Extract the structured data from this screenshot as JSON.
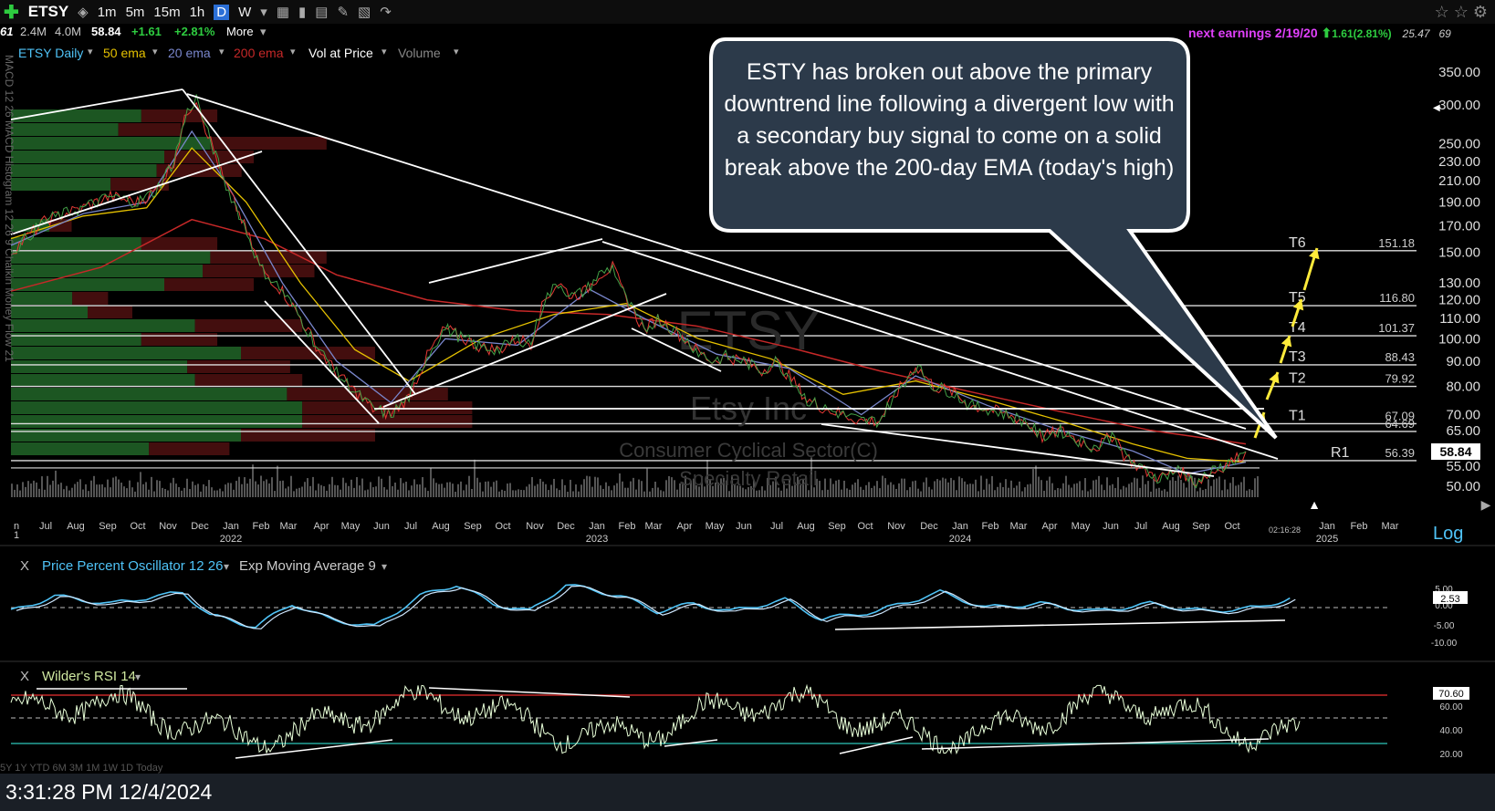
{
  "toolbar": {
    "symbol": "ETSY",
    "timeframes": [
      "1m",
      "5m",
      "15m",
      "1h",
      "D",
      "W"
    ],
    "selected_timeframe": "D"
  },
  "quote": {
    "prefix": "61",
    "volume": "2.4M",
    "avg_volume": "4.0M",
    "last": "58.84",
    "change": "+1.61",
    "change_pct": "+2.81%",
    "more": "More"
  },
  "earnings": {
    "label": "next earnings 2/19/20",
    "change": "1.61(2.81%)",
    "extra1": "25.47",
    "extra2": "69"
  },
  "legend": {
    "items": [
      {
        "label": "ETSY Daily",
        "color": "#4fc3f7"
      },
      {
        "label": "50 ema",
        "color": "#e5c100"
      },
      {
        "label": "20 ema",
        "color": "#7986cb"
      },
      {
        "label": "200 ema",
        "color": "#c62828"
      },
      {
        "label": "Vol at Price",
        "color": "#ffffff"
      },
      {
        "label": "Volume",
        "color": "#888888"
      }
    ]
  },
  "watermark": {
    "symbol": "ETSY",
    "name": "Etsy Inc",
    "sector": "Consumer Cyclical Sector(C)",
    "industry": "Specialty Retail"
  },
  "callout": {
    "text": "ESTY has broken out above the primary downtrend line following a divergent low with a secondary buy signal to come on a solid break above the 200-day EMA (today's high)"
  },
  "left_side_label": "MACD 12 26 MACD Histogram 12 26 9 Chaikin Money Flow 21",
  "panels": {
    "ppo": {
      "title": "Price Percent Oscillator 12 26",
      "signal": "Exp Moving Average 9",
      "close_label": "X",
      "value": "2.53"
    },
    "rsi": {
      "title": "Wilder's RSI 14",
      "close_label": "X",
      "value": "70.60"
    }
  },
  "log_label": "Log",
  "time_badge": "02:16:28",
  "status": {
    "timestamp": "3:31:28 PM 12/4/2024"
  },
  "range_buttons": "5Y  1Y  YTD  6M  3M  1M  1W  1D  Today",
  "chart_data": {
    "type": "line",
    "scale": "log",
    "ylim": [
      45,
      380
    ],
    "yticks": [
      350,
      300,
      250,
      230,
      210,
      190,
      170,
      150,
      130,
      120,
      110,
      100,
      90,
      80,
      70,
      65,
      55,
      50
    ],
    "ytick_labels": [
      "350.00",
      "300.00",
      "250.00",
      "230.00",
      "210.00",
      "190.00",
      "170.00",
      "150.00",
      "130.00",
      "120.00",
      "110.00",
      "100.00",
      "90.00",
      "80.00",
      "70.00",
      "65.00",
      "55.00",
      "50.00"
    ],
    "last_price": 58.84,
    "last_price_label": "58.84",
    "x_months": [
      "n",
      "Jul",
      "Aug",
      "Sep",
      "Oct",
      "Nov",
      "Dec",
      "Jan",
      "Feb",
      "Mar",
      "Apr",
      "May",
      "Jun",
      "Jul",
      "Aug",
      "Sep",
      "Oct",
      "Nov",
      "Dec",
      "Jan",
      "Feb",
      "Mar",
      "Apr",
      "May",
      "Jun",
      "Jul",
      "Aug",
      "Sep",
      "Oct",
      "Nov",
      "Dec",
      "Jan",
      "Feb",
      "Mar",
      "Apr",
      "May",
      "Jun",
      "Jul",
      "Aug",
      "Sep",
      "Oct",
      "Jan",
      "Feb",
      "Mar"
    ],
    "x_years": [
      "2022",
      "2023",
      "2024",
      "2025"
    ],
    "targets": [
      {
        "name": "T6",
        "value": 151.18,
        "label": "151.18"
      },
      {
        "name": "T5",
        "value": 116.8,
        "label": "116.80"
      },
      {
        "name": "T4",
        "value": 101.37,
        "label": "101.37"
      },
      {
        "name": "T3",
        "value": 88.43,
        "label": "88.43"
      },
      {
        "name": "T2",
        "value": 79.92,
        "label": "79.92"
      },
      {
        "name": "T1",
        "value": 67.09,
        "label": "67.09"
      },
      {
        "name": "",
        "value": 64.69,
        "label": "64.69"
      },
      {
        "name": "R1",
        "value": 56.39,
        "label": "56.39"
      }
    ],
    "price_path": [
      [
        0,
        150
      ],
      [
        40,
        175
      ],
      [
        80,
        185
      ],
      [
        110,
        195
      ],
      [
        140,
        190
      ],
      [
        160,
        200
      ],
      [
        180,
        230
      ],
      [
        195,
        290
      ],
      [
        205,
        310
      ],
      [
        215,
        270
      ],
      [
        235,
        210
      ],
      [
        255,
        175
      ],
      [
        275,
        140
      ],
      [
        300,
        125
      ],
      [
        320,
        110
      ],
      [
        340,
        95
      ],
      [
        360,
        85
      ],
      [
        380,
        78
      ],
      [
        400,
        72
      ],
      [
        420,
        70
      ],
      [
        440,
        76
      ],
      [
        460,
        92
      ],
      [
        480,
        105
      ],
      [
        500,
        100
      ],
      [
        520,
        96
      ],
      [
        540,
        95
      ],
      [
        560,
        100
      ],
      [
        575,
        98
      ],
      [
        590,
        120
      ],
      [
        605,
        130
      ],
      [
        620,
        122
      ],
      [
        635,
        125
      ],
      [
        650,
        135
      ],
      [
        665,
        140
      ],
      [
        680,
        120
      ],
      [
        700,
        104
      ],
      [
        715,
        110
      ],
      [
        730,
        105
      ],
      [
        745,
        100
      ],
      [
        760,
        94
      ],
      [
        775,
        90
      ],
      [
        790,
        92
      ],
      [
        810,
        90
      ],
      [
        830,
        86
      ],
      [
        845,
        90
      ],
      [
        860,
        84
      ],
      [
        880,
        75
      ],
      [
        900,
        72
      ],
      [
        920,
        70
      ],
      [
        940,
        68
      ],
      [
        960,
        68
      ],
      [
        980,
        78
      ],
      [
        1000,
        88
      ],
      [
        1020,
        80
      ],
      [
        1040,
        78
      ],
      [
        1060,
        73
      ],
      [
        1080,
        72
      ],
      [
        1100,
        70
      ],
      [
        1120,
        68
      ],
      [
        1140,
        63
      ],
      [
        1160,
        65
      ],
      [
        1180,
        62
      ],
      [
        1200,
        60
      ],
      [
        1220,
        64
      ],
      [
        1230,
        58
      ],
      [
        1250,
        54
      ],
      [
        1270,
        52
      ],
      [
        1290,
        54
      ],
      [
        1310,
        51
      ],
      [
        1325,
        53
      ],
      [
        1340,
        55
      ],
      [
        1355,
        57
      ],
      [
        1365,
        58.84
      ]
    ],
    "ema20_path": [
      [
        0,
        155
      ],
      [
        80,
        180
      ],
      [
        150,
        190
      ],
      [
        200,
        265
      ],
      [
        240,
        205
      ],
      [
        300,
        130
      ],
      [
        360,
        90
      ],
      [
        420,
        74
      ],
      [
        480,
        100
      ],
      [
        560,
        97
      ],
      [
        640,
        126
      ],
      [
        700,
        110
      ],
      [
        780,
        93
      ],
      [
        860,
        87
      ],
      [
        940,
        70
      ],
      [
        1000,
        84
      ],
      [
        1080,
        73
      ],
      [
        1160,
        65
      ],
      [
        1240,
        59
      ],
      [
        1300,
        53
      ],
      [
        1365,
        56
      ]
    ],
    "ema50_path": [
      [
        0,
        160
      ],
      [
        80,
        178
      ],
      [
        150,
        185
      ],
      [
        200,
        245
      ],
      [
        260,
        190
      ],
      [
        320,
        130
      ],
      [
        380,
        95
      ],
      [
        440,
        82
      ],
      [
        520,
        100
      ],
      [
        600,
        112
      ],
      [
        680,
        118
      ],
      [
        760,
        100
      ],
      [
        840,
        91
      ],
      [
        920,
        77
      ],
      [
        1000,
        82
      ],
      [
        1080,
        75
      ],
      [
        1160,
        68
      ],
      [
        1240,
        61
      ],
      [
        1300,
        57
      ],
      [
        1365,
        56
      ]
    ],
    "ema200_path": [
      [
        0,
        125
      ],
      [
        100,
        140
      ],
      [
        200,
        175
      ],
      [
        280,
        160
      ],
      [
        360,
        135
      ],
      [
        460,
        120
      ],
      [
        560,
        114
      ],
      [
        660,
        112
      ],
      [
        760,
        106
      ],
      [
        860,
        96
      ],
      [
        960,
        86
      ],
      [
        1060,
        78
      ],
      [
        1160,
        71
      ],
      [
        1260,
        65
      ],
      [
        1365,
        61
      ]
    ],
    "trendlines": [
      [
        [
          12,
          131
        ],
        [
          200,
          98
        ]
      ],
      [
        [
          12,
          257
        ],
        [
          287,
          166
        ]
      ],
      [
        [
          200,
          98
        ],
        [
          455,
          432
        ]
      ],
      [
        [
          290,
          330
        ],
        [
          415,
          464
        ]
      ],
      [
        [
          205,
          103
        ],
        [
          1365,
          470
        ]
      ],
      [
        [
          410,
          448
        ],
        [
          1385,
          448
        ]
      ],
      [
        [
          470,
          310
        ],
        [
          660,
          262
        ]
      ],
      [
        [
          420,
          446
        ],
        [
          730,
          322
        ]
      ],
      [
        [
          692,
          360
        ],
        [
          790,
          407
        ]
      ],
      [
        [
          900,
          465
        ],
        [
          1330,
          522
        ]
      ],
      [
        [
          660,
          265
        ],
        [
          1400,
          503
        ]
      ]
    ],
    "projection_arrows": [
      [
        1375,
        480,
        1385,
        452
      ],
      [
        1388,
        438,
        1400,
        408
      ],
      [
        1403,
        398,
        1413,
        368
      ],
      [
        1416,
        358,
        1426,
        328
      ],
      [
        1429,
        318,
        1443,
        272
      ]
    ],
    "ppo_ticks": [
      "5.00",
      "0.00",
      "-5.00",
      "-10.00"
    ],
    "rsi_ticks": [
      "60.00",
      "40.00",
      "20.00"
    ],
    "rsi_levels": {
      "overbought": 70,
      "oversold": 30
    }
  }
}
